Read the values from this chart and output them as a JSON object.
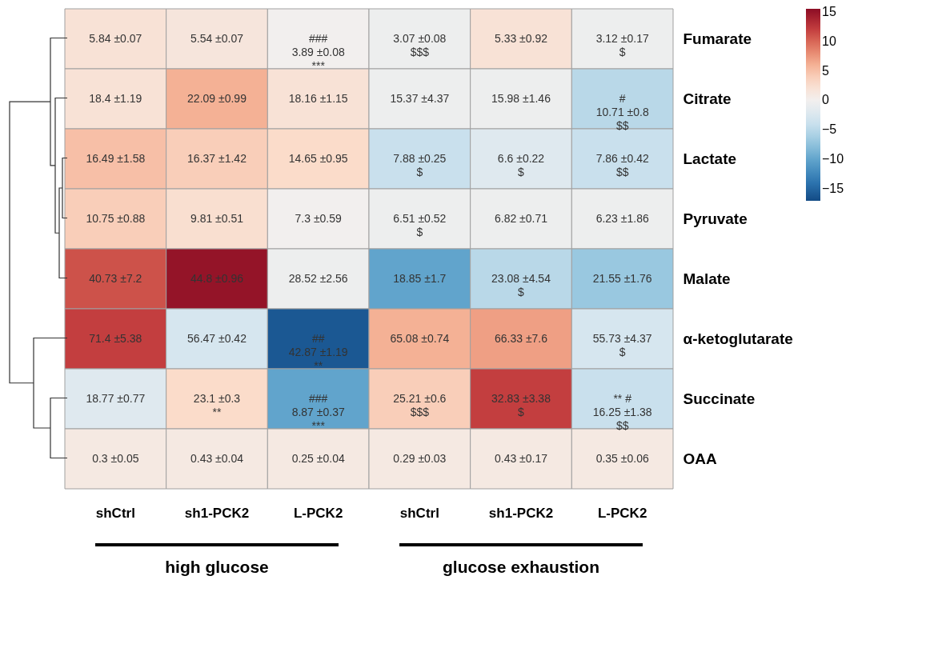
{
  "chart_data": {
    "type": "heatmap",
    "categories": [
      "shCtrl",
      "sh1-PCK2",
      "L-PCK2",
      "shCtrl",
      "sh1-PCK2",
      "L-PCK2"
    ],
    "y_categories": [
      "Fumarate",
      "Citrate",
      "Lactate",
      "Pyruvate",
      "Malate",
      "α-ketoglutarate",
      "Succinate",
      "OAA"
    ],
    "cells": [
      [
        2,
        1.5,
        0,
        -0.5,
        2,
        -0.5
      ],
      [
        2,
        6,
        2,
        -0.5,
        -0.5,
        -5
      ],
      [
        5,
        4,
        3,
        -4,
        -2,
        -4
      ],
      [
        4,
        2.5,
        0,
        -0.5,
        -0.5,
        -0.5
      ],
      [
        11,
        15,
        -0.5,
        -10,
        -5,
        -7
      ],
      [
        12,
        -3,
        -16,
        6,
        7,
        -3
      ],
      [
        -2,
        3,
        -10,
        4,
        12,
        -4
      ],
      [
        1,
        1,
        1,
        1,
        1,
        1
      ]
    ],
    "cell_labels": [
      [
        "5.84 ±0.07",
        "5.54 ±0.07",
        "###\n3.89 ±0.08\n***",
        "3.07 ±0.08\n$$$",
        "5.33 ±0.92",
        "3.12 ±0.17\n$"
      ],
      [
        "18.4 ±1.19",
        "22.09 ±0.99",
        "18.16 ±1.15",
        "15.37 ±4.37",
        "15.98 ±1.46",
        "#\n10.71 ±0.8\n$$"
      ],
      [
        "16.49 ±1.58",
        "16.37 ±1.42",
        "14.65 ±0.95",
        "7.88 ±0.25\n$",
        "6.6 ±0.22\n$",
        "7.86 ±0.42\n$$"
      ],
      [
        "10.75 ±0.88",
        "9.81 ±0.51",
        "7.3 ±0.59",
        "6.51 ±0.52\n$",
        "6.82 ±0.71",
        "6.23 ±1.86"
      ],
      [
        "40.73 ±7.2",
        "44.8 ±0.96",
        "28.52 ±2.56",
        "18.85 ±1.7",
        "23.08 ±4.54\n$",
        "21.55 ±1.76"
      ],
      [
        "71.4 ±5.38",
        "56.47 ±0.42",
        "##\n42.87 ±1.19\n**",
        "65.08 ±0.74",
        "66.33 ±7.6",
        "55.73 ±4.37\n$"
      ],
      [
        "18.77 ±0.77",
        "23.1 ±0.3\n**",
        "###\n8.87 ±0.37\n***",
        "25.21 ±0.6\n$$$",
        "32.83 ±3.38\n$",
        "**     #\n16.25 ±1.38\n$$"
      ],
      [
        "0.3 ±0.05",
        "0.43 ±0.04",
        "0.25 ±0.04",
        "0.29 ±0.03",
        "0.43 ±0.17",
        "0.35 ±0.06"
      ]
    ],
    "clim": [
      -17,
      15.5
    ],
    "cticks": [
      15,
      10,
      5,
      0,
      -5,
      -10,
      -15
    ],
    "annotations": [
      "high glucose",
      "glucose exhaustion"
    ]
  }
}
